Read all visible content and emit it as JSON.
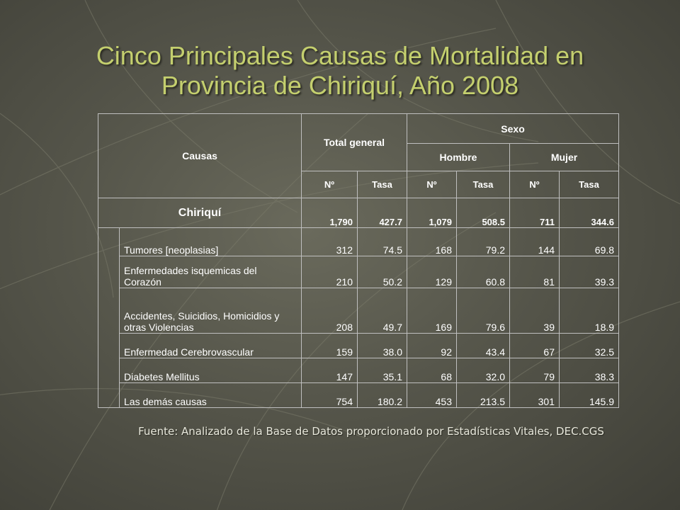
{
  "title": {
    "line1": "Cinco Principales Causas de Mortalidad  en",
    "line2": "Provincia de Chiriquí, Año 2008"
  },
  "table": {
    "headers": {
      "causas": "Causas",
      "total_general": "Total general",
      "sexo": "Sexo",
      "hombre": "Hombre",
      "mujer": "Mujer",
      "sub": [
        "Nº",
        "Tasa",
        "Nº",
        "Tasa",
        "Nº",
        "Tasa"
      ]
    },
    "summary": {
      "label": "Chiriquí",
      "values": [
        "1,790",
        "427.7",
        "1,079",
        "508.5",
        "711",
        "344.6"
      ]
    },
    "rows": [
      {
        "cause": "Tumores [neoplasias]",
        "values": [
          "312",
          "74.5",
          "168",
          "79.2",
          "144",
          "69.8"
        ]
      },
      {
        "cause": "Enfermedades isquemicas del Corazón",
        "values": [
          "210",
          "50.2",
          "129",
          "60.8",
          "81",
          "39.3"
        ]
      },
      {
        "cause": "Accidentes, Suicidios, Homicidios y otras Violencias",
        "values": [
          "208",
          "49.7",
          "169",
          "79.6",
          "39",
          "18.9"
        ]
      },
      {
        "cause": "Enfermedad Cerebrovascular",
        "values": [
          "159",
          "38.0",
          "92",
          "43.4",
          "67",
          "32.5"
        ]
      },
      {
        "cause": "Diabetes Mellitus",
        "values": [
          "147",
          "35.1",
          "68",
          "32.0",
          "79",
          "38.3"
        ]
      },
      {
        "cause": "Las demás causas",
        "values": [
          "754",
          "180.2",
          "453",
          "213.5",
          "301",
          "145.9"
        ]
      }
    ]
  },
  "source": "Fuente: Analizado de la Base de Datos proporcionado por Estadísticas Vitales,  DEC.CGS",
  "colors": {
    "title": "#c4cf6e",
    "background": "#55554a",
    "grid": "#bfbfbf",
    "text": "#ffffff"
  }
}
